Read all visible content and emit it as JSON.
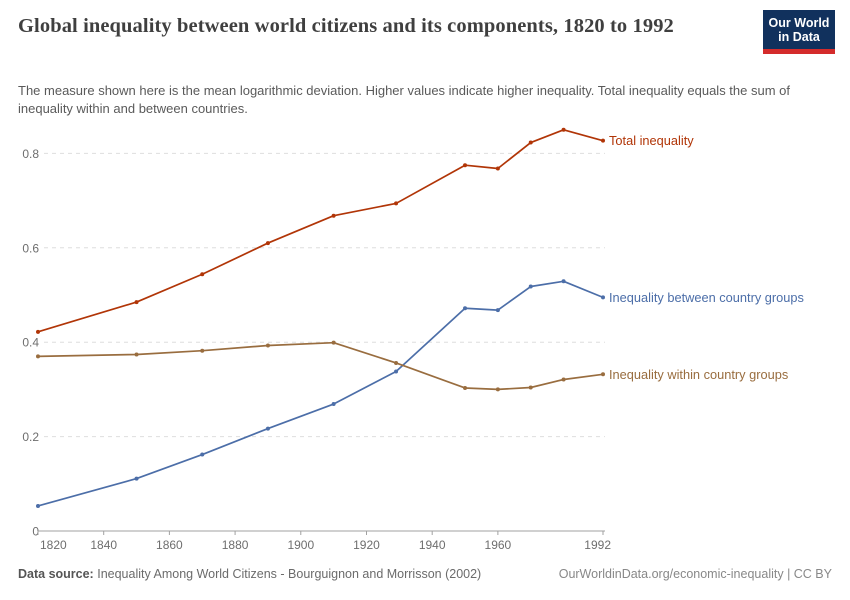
{
  "header": {
    "title": "Global inequality between world citizens and its components, 1820 to 1992",
    "subtitle": "The measure shown here is the mean logarithmic deviation. Higher values indicate higher inequality. Total inequality equals the sum of inequality within and between countries.",
    "logo": {
      "line1": "Our World",
      "line2": "in Data"
    }
  },
  "footer": {
    "source_label": "Data source:",
    "source_text": "Inequality Among World Citizens - Bourguignon and Morrisson (2002)",
    "link_text": "OurWorldinData.org/economic-inequality | CC BY"
  },
  "colors": {
    "total": "#B13507",
    "between": "#4C6EA8",
    "within": "#996D3F",
    "grid": "#dedede",
    "axis": "#a1a1a1",
    "logo_navy": "#11315d",
    "logo_red": "#d42b2b"
  },
  "chart_data": {
    "type": "line",
    "title": "Global inequality between world citizens and its components, 1820 to 1992",
    "ylabel": "Mean logarithmic deviation",
    "x": [
      1820,
      1850,
      1870,
      1890,
      1910,
      1929,
      1950,
      1960,
      1970,
      1980,
      1992
    ],
    "series": [
      {
        "id": "total",
        "name": "Total inequality",
        "color": "#B13507",
        "values": [
          0.422,
          0.485,
          0.544,
          0.61,
          0.668,
          0.694,
          0.775,
          0.768,
          0.823,
          0.85,
          0.827
        ]
      },
      {
        "id": "between",
        "name": "Inequality between country groups",
        "color": "#4C6EA8",
        "values": [
          0.053,
          0.111,
          0.162,
          0.217,
          0.269,
          0.338,
          0.472,
          0.468,
          0.518,
          0.529,
          0.495
        ]
      },
      {
        "id": "within",
        "name": "Inequality within country groups",
        "color": "#996D3F",
        "values": [
          0.37,
          0.374,
          0.382,
          0.393,
          0.399,
          0.356,
          0.303,
          0.3,
          0.304,
          0.321,
          0.332
        ]
      }
    ],
    "xlim": [
      1820,
      1992
    ],
    "ylim": [
      0,
      0.9
    ],
    "yticks": [
      0,
      0.2,
      0.4,
      0.6,
      0.8
    ],
    "xticks": [
      1820,
      1840,
      1860,
      1880,
      1900,
      1920,
      1940,
      1960,
      1992
    ],
    "grid": "horizontal-dashed",
    "legend_position": "end-of-line-labels"
  }
}
